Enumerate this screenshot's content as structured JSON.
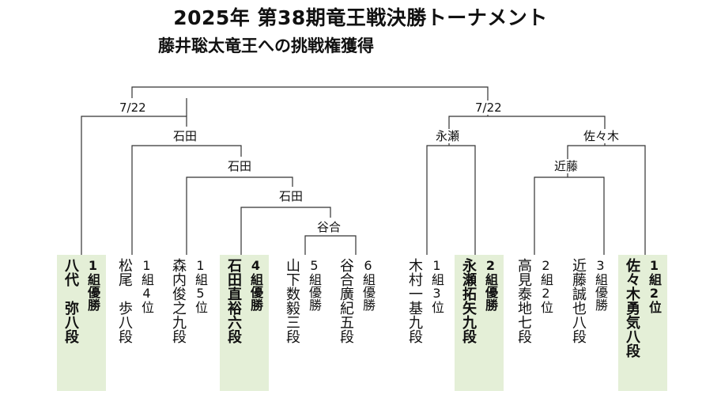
{
  "title": "2025年 第38期竜王戦決勝トーナメント",
  "subtitle": "藤井聡太竜王への挑戦権獲得",
  "bracket": {
    "left_date": "7/22",
    "right_date": "7/22",
    "winners": {
      "left_r1": "谷合",
      "left_r2": "石田",
      "left_r3": "石田",
      "left_r4": "石田",
      "right_a": "永瀬",
      "right_b_inner": "近藤",
      "right_b": "佐々木"
    }
  },
  "players": [
    {
      "seed": "1組優勝",
      "name": "八代　弥八段",
      "highlight": true
    },
    {
      "seed": "1組4位",
      "name": "松尾　歩八段",
      "highlight": false
    },
    {
      "seed": "1組5位",
      "name": "森内俊之九段",
      "highlight": false
    },
    {
      "seed": "4組優勝",
      "name": "石田直裕六段",
      "highlight": true
    },
    {
      "seed": "5組優勝",
      "name": "山下数毅三段",
      "highlight": false
    },
    {
      "seed": "6組優勝",
      "name": "谷合廣紀五段",
      "highlight": false
    },
    {
      "seed": "1組3位",
      "name": "木村一基九段",
      "highlight": false
    },
    {
      "seed": "2組優勝",
      "name": "永瀬拓矢九段",
      "highlight": true
    },
    {
      "seed": "2組2位",
      "name": "高見泰地七段",
      "highlight": false
    },
    {
      "seed": "3組優勝",
      "name": "近藤誠也八段",
      "highlight": false
    },
    {
      "seed": "1組2位",
      "name": "佐々木勇気八段",
      "highlight": true
    }
  ]
}
